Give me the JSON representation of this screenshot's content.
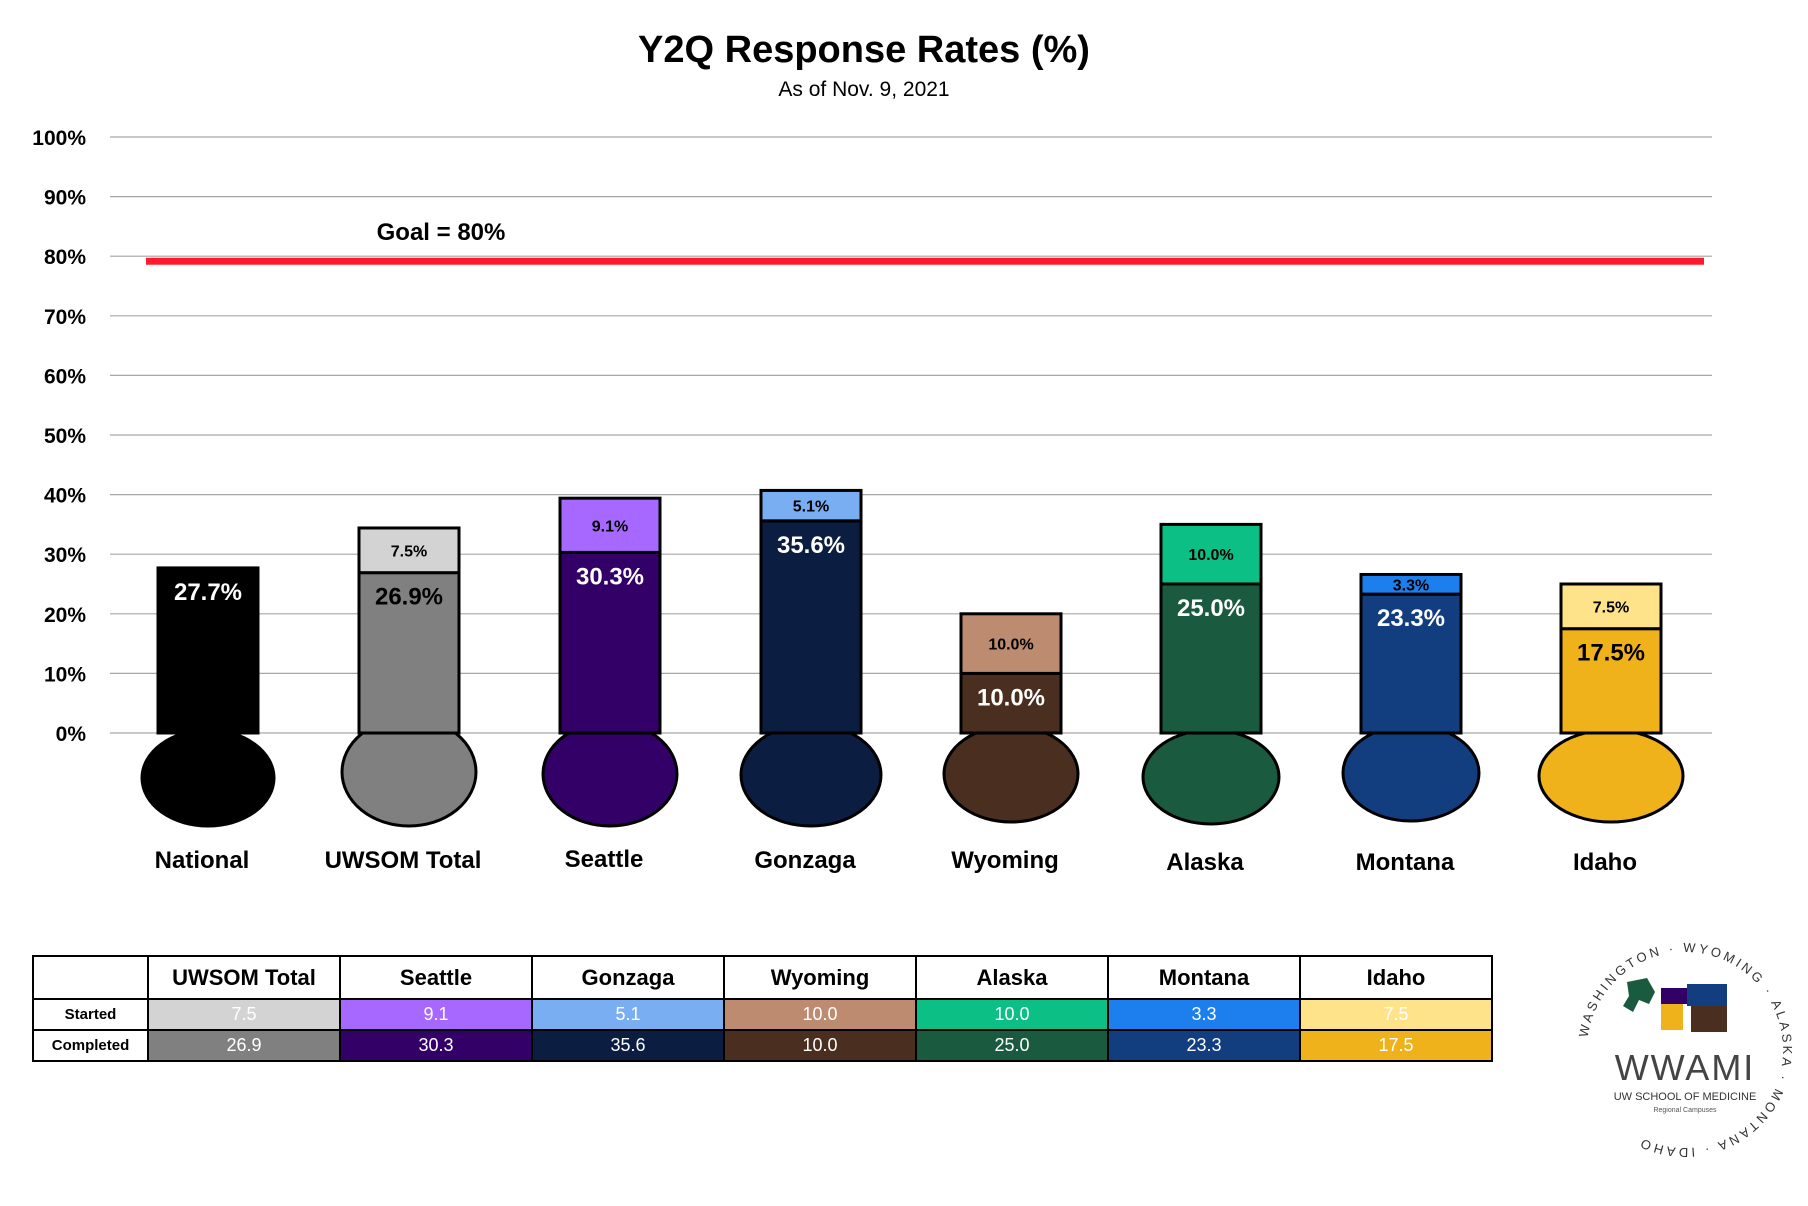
{
  "chart_data": {
    "type": "bar",
    "stacked": true,
    "title": "Y2Q Response Rates (%)",
    "subtitle": "As of Nov. 9, 2021",
    "ylim": [
      0,
      100
    ],
    "yticks": [
      "0%",
      "10%",
      "20%",
      "30%",
      "40%",
      "50%",
      "60%",
      "70%",
      "80%",
      "90%",
      "100%"
    ],
    "grid": true,
    "goal": {
      "value": 80,
      "label": "Goal = 80%",
      "color": "#ff1a2e"
    },
    "categories": [
      "National",
      "UWSOM Total",
      "Seattle",
      "Gonzaga",
      "Wyoming",
      "Alaska",
      "Montana",
      "Idaho"
    ],
    "series": [
      {
        "role": "completed",
        "values": [
          27.7,
          26.9,
          30.3,
          35.6,
          10.0,
          25.0,
          23.3,
          17.5
        ],
        "labels": [
          "27.7%",
          "26.9%",
          "30.3%",
          "35.6%",
          "10.0%",
          "25.0%",
          "23.3%",
          "17.5%"
        ],
        "colors": [
          "#000000",
          "#808080",
          "#320067",
          "#0b1d40",
          "#4a2e20",
          "#1a5a3e",
          "#123e80",
          "#f0b21b"
        ],
        "label_colors": [
          "#ffffff",
          "#000000",
          "#ffffff",
          "#ffffff",
          "#ffffff",
          "#ffffff",
          "#ffffff",
          "#000000"
        ]
      },
      {
        "role": "started",
        "values": [
          null,
          7.5,
          9.1,
          5.1,
          10.0,
          10.0,
          3.3,
          7.5
        ],
        "labels": [
          "",
          "7.5%",
          "9.1%",
          "5.1%",
          "10.0%",
          "10.0%",
          "3.3%",
          "7.5%"
        ],
        "colors": [
          "#000000",
          "#d3d3d3",
          "#a668ff",
          "#7aaef2",
          "#bd8b6f",
          "#0cbf85",
          "#1d7fee",
          "#fee38a"
        ],
        "label_colors": [
          "#000000",
          "#000000",
          "#000000",
          "#000000",
          "#000000",
          "#000000",
          "#000000",
          "#000000"
        ]
      }
    ]
  },
  "table": {
    "columns": [
      "UWSOM Total",
      "Seattle",
      "Gonzaga",
      "Wyoming",
      "Alaska",
      "Montana",
      "Idaho"
    ],
    "rows": [
      {
        "label": "Started",
        "values": [
          "7.5",
          "9.1",
          "5.1",
          "10.0",
          "10.0",
          "3.3",
          "7.5"
        ],
        "bg": [
          "#d3d3d3",
          "#a668ff",
          "#7aaef2",
          "#bd8b6f",
          "#0cbf85",
          "#1d7fee",
          "#fee38a"
        ],
        "fg": [
          "#ffffff",
          "#ffffff",
          "#ffffff",
          "#ffffff",
          "#ffffff",
          "#ffffff",
          "#ffffff"
        ]
      },
      {
        "label": "Completed",
        "values": [
          "26.9",
          "30.3",
          "35.6",
          "10.0",
          "25.0",
          "23.3",
          "17.5"
        ],
        "bg": [
          "#808080",
          "#320067",
          "#0b1d40",
          "#4a2e20",
          "#1a5a3e",
          "#123e80",
          "#f0b21b"
        ],
        "fg": [
          "#ffffff",
          "#ffffff",
          "#ffffff",
          "#ffffff",
          "#ffffff",
          "#ffffff",
          "#ffffff"
        ]
      }
    ]
  },
  "logo": {
    "name": "WWAMI",
    "subtitle": "UW SCHOOL OF MEDICINE",
    "subtitle2": "Regional Campuses",
    "ring_text": "WASHINGTON · WYOMING · ALASKA · MONTANA · IDAHO"
  }
}
